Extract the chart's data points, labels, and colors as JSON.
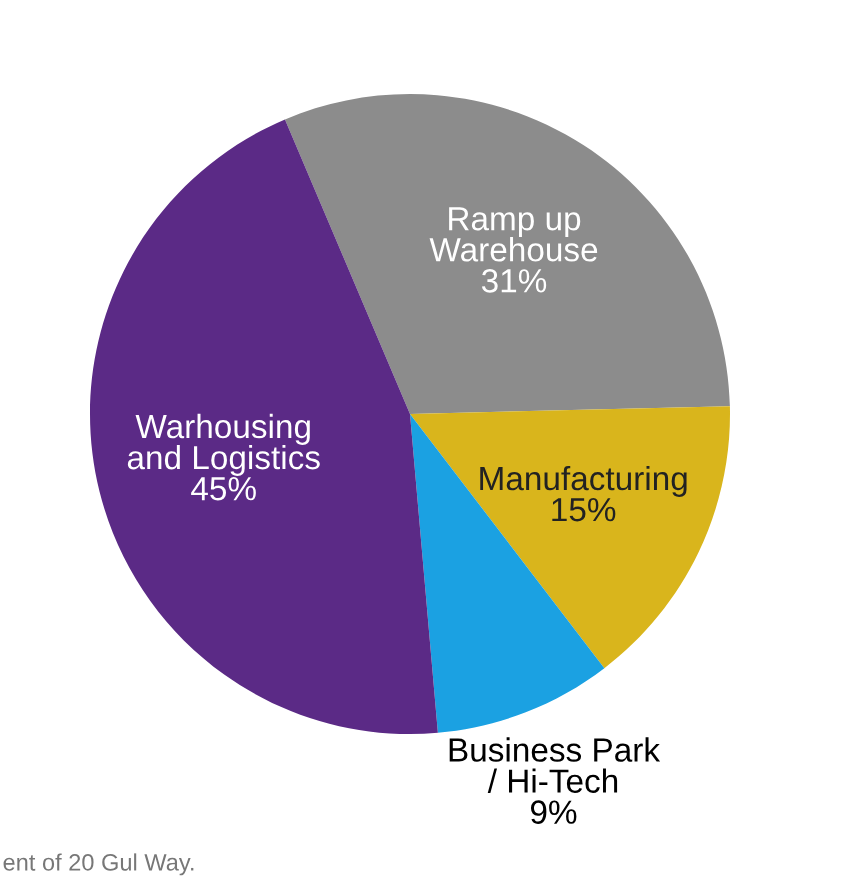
{
  "chart_data": {
    "type": "pie",
    "categories": [
      "Ramp up\nWarehouse",
      "Manufacturing",
      "Business Park\n/ Hi-Tech",
      "Warhousing\nand Logistics"
    ],
    "values": [
      31,
      15,
      9,
      45
    ],
    "value_labels": [
      "31%",
      "15%",
      "9%",
      "45%"
    ],
    "colors": [
      "#8c8c8c",
      "#d9b51c",
      "#1ba1e2",
      "#5b2a86"
    ],
    "annotations": [
      "ent of 20 Gul Way."
    ]
  }
}
